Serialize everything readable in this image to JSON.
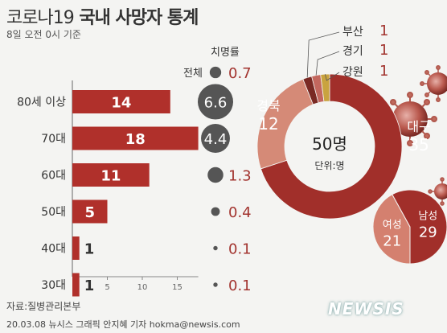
{
  "header": {
    "title_light": "코로나19",
    "title_bold": "국내 사망자 통계",
    "subtitle": "8일 오전 0시 기준"
  },
  "cfr_header": "치명률",
  "all_label": "전체",
  "colors": {
    "bar": "#b0302b",
    "bar_dark": "#9a2622",
    "circle": "#555555",
    "cfr_text": "#a2332e",
    "donut_main": "#a12f2a",
    "donut_gyeongbuk": "#d58a77",
    "donut_busan": "#7a2a24",
    "donut_gyeonggi": "#c3675e",
    "donut_gangwon": "#c9a33f",
    "gender_female": "#d4806f",
    "gender_male": "#a12f2a"
  },
  "footer": {
    "source": "자료:질병관리본부",
    "credit": "20.03.08 뉴시스 그래픽 안지혜 기자 hokma@newsis.com",
    "logo": "NEWSIS"
  },
  "chart_data": [
    {
      "type": "bar",
      "orientation": "horizontal",
      "categories": [
        "80세 이상",
        "70대",
        "60대",
        "50대",
        "40대",
        "30대"
      ],
      "values": [
        14,
        18,
        11,
        5,
        1,
        1
      ],
      "xlim": [
        0,
        18
      ],
      "xticks": [
        5,
        10,
        15
      ],
      "cfr": {
        "title": "치명률",
        "all_label": "전체",
        "all_value": 0.7,
        "values": [
          6.6,
          4.4,
          1.3,
          0.4,
          0.1,
          0.1
        ]
      }
    },
    {
      "type": "pie",
      "style": "donut",
      "center_value": "50명",
      "center_unit": "단위:명",
      "slices": [
        {
          "label": "대구",
          "value": 35
        },
        {
          "label": "경북",
          "value": 12
        },
        {
          "label": "부산",
          "value": 1
        },
        {
          "label": "경기",
          "value": 1
        },
        {
          "label": "강원",
          "value": 1
        }
      ]
    },
    {
      "type": "pie",
      "slices": [
        {
          "label": "여성",
          "value": 21
        },
        {
          "label": "남성",
          "value": 29
        }
      ]
    }
  ]
}
